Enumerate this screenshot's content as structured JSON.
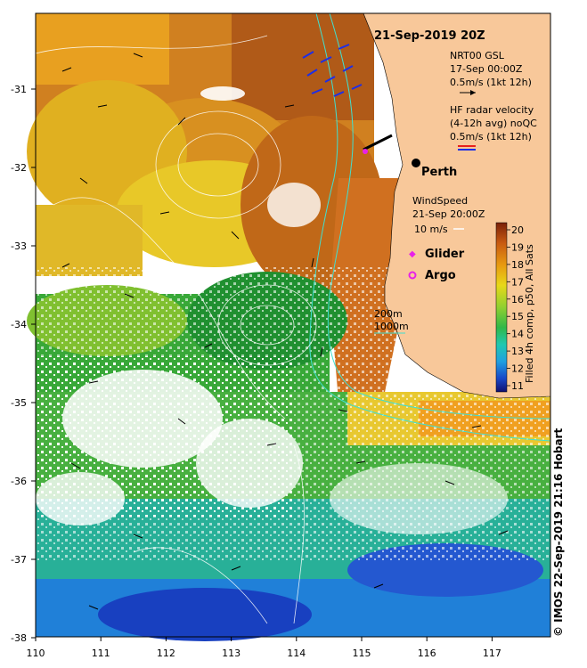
{
  "map": {
    "title": "21-Sep-2019 20Z",
    "x_ticks": [
      "110",
      "111",
      "112",
      "113",
      "114",
      "115",
      "116",
      "117"
    ],
    "y_ticks": [
      "-31",
      "-32",
      "-33",
      "-34",
      "-35",
      "-36",
      "-37",
      "-38"
    ],
    "place_label": "Perth",
    "copyright": "© IMOS 22-Sep-2019 21:16 Hobart"
  },
  "legend": {
    "gsl_title": "NRT00 GSL",
    "gsl_time": "17-Sep 00:00Z",
    "gsl_scale": "0.5m/s (1kt 12h)",
    "hf_title": "HF radar velocity",
    "hf_sub": "(4-12h avg) noQC",
    "hf_scale": "0.5m/s (1kt 12h)",
    "wind_title": "WindSpeed",
    "wind_time": "21-Sep 20:00Z",
    "wind_scale": "10 m/s",
    "glider": "Glider",
    "argo": "Argo",
    "contour_200": "200m",
    "contour_1000": "1000m"
  },
  "colorbar": {
    "ticks": [
      "20",
      "19",
      "18",
      "17",
      "16",
      "15",
      "14",
      "13",
      "12",
      "11"
    ],
    "label": "Filled 4h comp, p50, All Sats"
  },
  "colors": {
    "land": "#f8c89a",
    "hf_red": "#e8201c",
    "hf_blue": "#1c2ee8",
    "glider": "#e820e8",
    "contour": "#40e0d0"
  }
}
